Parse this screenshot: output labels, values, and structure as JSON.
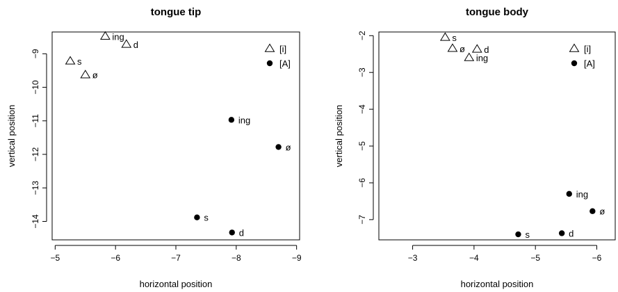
{
  "legend_labels": {
    "open": "[i]",
    "filled": "[A]"
  },
  "chart_data": [
    {
      "type": "scatter",
      "title": "tongue tip",
      "xlabel": "horizontal position",
      "ylabel": "vertical position",
      "x_reversed": true,
      "xlim": [
        -4.95,
        -9.05
      ],
      "ylim": [
        -14.55,
        -8.35
      ],
      "xticks": [
        -5,
        -6,
        -7,
        -8,
        -9
      ],
      "yticks": [
        -9,
        -10,
        -11,
        -12,
        -13,
        -14
      ],
      "legend": "top-right",
      "series": [
        {
          "name": "[i]",
          "marker": "open-triangle",
          "points": [
            {
              "label": "ing",
              "x": -5.83,
              "y": -8.48
            },
            {
              "label": "d",
              "x": -6.18,
              "y": -8.72
            },
            {
              "label": "s",
              "x": -5.25,
              "y": -9.22
            },
            {
              "label": "ø",
              "x": -5.5,
              "y": -9.63
            }
          ]
        },
        {
          "name": "[A]",
          "marker": "filled-circle",
          "points": [
            {
              "label": "ing",
              "x": -7.92,
              "y": -10.97
            },
            {
              "label": "ø",
              "x": -8.7,
              "y": -11.78
            },
            {
              "label": "s",
              "x": -7.35,
              "y": -13.88
            },
            {
              "label": "d",
              "x": -7.93,
              "y": -14.33
            }
          ]
        }
      ]
    },
    {
      "type": "scatter",
      "title": "tongue body",
      "xlabel": "horizontal position",
      "ylabel": "vertical position",
      "x_reversed": true,
      "xlim": [
        -2.45,
        -6.3
      ],
      "ylim": [
        -7.55,
        -1.9
      ],
      "xticks": [
        -3,
        -4,
        -5,
        -6
      ],
      "yticks": [
        -2,
        -3,
        -4,
        -5,
        -6,
        -7
      ],
      "legend": "top-right",
      "series": [
        {
          "name": "[i]",
          "marker": "open-triangle",
          "points": [
            {
              "label": "s",
              "x": -3.53,
              "y": -2.05
            },
            {
              "label": "ø",
              "x": -3.65,
              "y": -2.35
            },
            {
              "label": "d",
              "x": -4.05,
              "y": -2.37
            },
            {
              "label": "ing",
              "x": -3.92,
              "y": -2.6
            }
          ]
        },
        {
          "name": "[A]",
          "marker": "filled-circle",
          "points": [
            {
              "label": "ing",
              "x": -5.55,
              "y": -6.3
            },
            {
              "label": "ø",
              "x": -5.93,
              "y": -6.77
            },
            {
              "label": "d",
              "x": -5.43,
              "y": -7.37
            },
            {
              "label": "s",
              "x": -4.72,
              "y": -7.4
            }
          ]
        }
      ]
    }
  ]
}
